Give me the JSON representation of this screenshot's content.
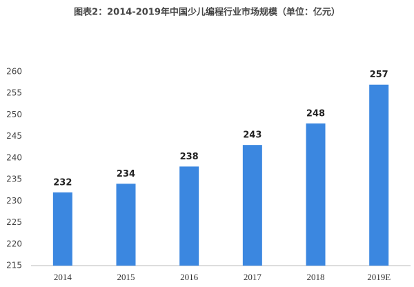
{
  "chart_data": {
    "type": "bar",
    "title": "图表2：2014-2019年中国少儿编程行业市场规模（单位：亿元）",
    "categories": [
      "2014",
      "2015",
      "2016",
      "2017",
      "2018",
      "2019E"
    ],
    "values": [
      232,
      234,
      238,
      243,
      248,
      257
    ],
    "color": "#3b87e0",
    "ylim": [
      215,
      260
    ],
    "yticks": [
      215,
      220,
      225,
      230,
      235,
      240,
      245,
      250,
      255,
      260
    ],
    "grid": false
  }
}
